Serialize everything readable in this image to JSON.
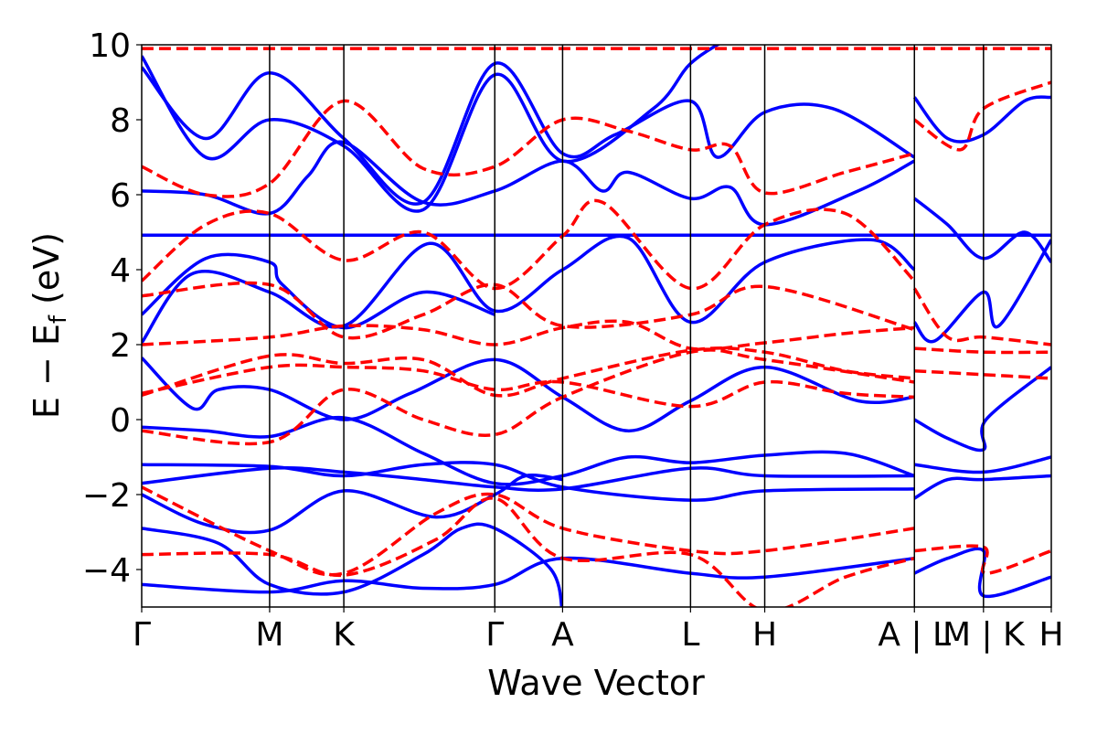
{
  "chart_data": {
    "type": "line",
    "title": "",
    "xlabel": "Wave Vector",
    "ylabel": "E − E",
    "ylabel_sub": "f",
    "ylabel_unit": " (eV)",
    "ylim": [
      -5,
      10
    ],
    "yticks": [
      -4,
      -2,
      0,
      2,
      4,
      6,
      8,
      10
    ],
    "ytick_labels": [
      "−4",
      "−2",
      "0",
      "2",
      "4",
      "6",
      "8",
      "10"
    ],
    "xlim": [
      0,
      7.11
    ],
    "xticks": [
      0,
      1,
      1.58,
      2.76,
      3.29,
      4.29,
      4.87,
      6.04,
      6.58,
      7.11
    ],
    "xtick_labels": [
      "Γ",
      "M",
      "K",
      "Γ",
      "A",
      "L",
      "H",
      "A | L",
      "M | K",
      "H"
    ],
    "grid": "vertical lines at high-symmetry points",
    "colors": {
      "solid": "#0000ff",
      "dashed": "#ff0000"
    },
    "series": [
      {
        "style": "solid",
        "points": [
          [
            0,
            4.92
          ],
          [
            7.11,
            4.92
          ]
        ]
      },
      {
        "style": "solid",
        "points": [
          [
            0,
            6.1
          ],
          [
            0.5,
            6.0
          ],
          [
            1,
            5.5
          ],
          [
            1.3,
            6.5
          ],
          [
            1.58,
            7.4
          ],
          [
            2.2,
            5.8
          ],
          [
            2.76,
            6.1
          ],
          [
            3.29,
            6.9
          ],
          [
            3.6,
            6.1
          ],
          [
            3.8,
            6.6
          ],
          [
            4.29,
            5.9
          ],
          [
            4.6,
            6.2
          ],
          [
            4.87,
            5.2
          ],
          [
            5.6,
            6.1
          ],
          [
            6.04,
            6.9
          ]
        ]
      },
      {
        "style": "solid",
        "points": [
          [
            6.04,
            5.9
          ],
          [
            6.3,
            5.2
          ],
          [
            6.58,
            4.3
          ],
          [
            6.9,
            5.0
          ],
          [
            7.11,
            4.2
          ]
        ]
      },
      {
        "style": "solid",
        "points": [
          [
            0,
            2.05
          ],
          [
            0.4,
            3.9
          ],
          [
            1,
            3.4
          ],
          [
            1.58,
            2.5
          ],
          [
            2.25,
            4.7
          ],
          [
            2.76,
            2.9
          ],
          [
            3.29,
            4.0
          ],
          [
            3.8,
            4.85
          ],
          [
            4.29,
            2.6
          ],
          [
            4.87,
            4.2
          ],
          [
            5.7,
            4.8
          ],
          [
            6.04,
            4.0
          ]
        ]
      },
      {
        "style": "solid",
        "points": [
          [
            6.04,
            2.6
          ],
          [
            6.2,
            2.1
          ],
          [
            6.58,
            3.4
          ],
          [
            6.7,
            2.5
          ],
          [
            7.11,
            4.8
          ]
        ]
      },
      {
        "style": "solid",
        "points": [
          [
            0,
            1.65
          ],
          [
            0.4,
            0.3
          ],
          [
            0.6,
            0.8
          ],
          [
            1,
            0.8
          ],
          [
            1.58,
            0.0
          ],
          [
            2.1,
            0.7
          ],
          [
            2.76,
            1.6
          ],
          [
            3.29,
            0.6
          ],
          [
            3.8,
            -0.3
          ],
          [
            4.29,
            0.5
          ],
          [
            4.87,
            1.4
          ],
          [
            5.6,
            0.5
          ],
          [
            6.04,
            0.6
          ]
        ]
      },
      {
        "style": "solid",
        "points": [
          [
            6.04,
            0.0
          ],
          [
            6.3,
            -0.5
          ],
          [
            6.58,
            -0.8
          ],
          [
            6.6,
            0.0
          ],
          [
            7.11,
            1.4
          ]
        ]
      },
      {
        "style": "solid",
        "points": [
          [
            0,
            -0.2
          ],
          [
            0.5,
            -0.3
          ],
          [
            1,
            -0.45
          ],
          [
            1.58,
            0.05
          ],
          [
            2.2,
            -0.9
          ],
          [
            2.76,
            -1.7
          ],
          [
            3.29,
            -1.5
          ],
          [
            3.8,
            -1.0
          ],
          [
            4.29,
            -1.15
          ],
          [
            4.87,
            -0.95
          ],
          [
            5.5,
            -0.9
          ],
          [
            6.04,
            -1.5
          ]
        ]
      },
      {
        "style": "solid",
        "points": [
          [
            0,
            -1.2
          ],
          [
            1,
            -1.25
          ],
          [
            1.58,
            -1.5
          ],
          [
            2.2,
            -1.2
          ],
          [
            2.76,
            -1.2
          ],
          [
            3.29,
            -1.8
          ],
          [
            4.29,
            -2.15
          ],
          [
            4.87,
            -1.9
          ],
          [
            6.04,
            -1.85
          ]
        ]
      },
      {
        "style": "solid",
        "points": [
          [
            0,
            -1.7
          ],
          [
            1,
            -1.3
          ],
          [
            1.58,
            -1.4
          ],
          [
            2.2,
            -1.6
          ],
          [
            2.76,
            -1.8
          ],
          [
            3.29,
            -1.85
          ],
          [
            4.29,
            -1.3
          ],
          [
            4.87,
            -1.5
          ],
          [
            6.04,
            -1.5
          ]
        ]
      },
      {
        "style": "solid",
        "points": [
          [
            0,
            -2.0
          ],
          [
            0.5,
            -2.8
          ],
          [
            1,
            -2.95
          ],
          [
            1.58,
            -1.9
          ],
          [
            2.3,
            -2.6
          ],
          [
            2.76,
            -2.0
          ],
          [
            3.0,
            -1.5
          ],
          [
            3.29,
            -1.6
          ]
        ]
      },
      {
        "style": "solid",
        "points": [
          [
            6.04,
            -1.2
          ],
          [
            6.58,
            -1.4
          ],
          [
            7.11,
            -1.0
          ]
        ]
      },
      {
        "style": "solid",
        "points": [
          [
            6.04,
            -2.1
          ],
          [
            6.3,
            -1.6
          ],
          [
            6.58,
            -1.6
          ],
          [
            7.11,
            -1.5
          ]
        ]
      },
      {
        "style": "solid",
        "points": [
          [
            0,
            -4.4
          ],
          [
            1,
            -4.6
          ],
          [
            1.58,
            -4.3
          ],
          [
            2.2,
            -4.5
          ],
          [
            2.76,
            -4.4
          ],
          [
            3.29,
            -3.7
          ],
          [
            4.29,
            -4.1
          ],
          [
            4.87,
            -4.2
          ],
          [
            6.04,
            -3.7
          ]
        ]
      },
      {
        "style": "solid",
        "points": [
          [
            0,
            -2.9
          ],
          [
            0.6,
            -3.3
          ],
          [
            1,
            -4.4
          ],
          [
            1.58,
            -4.6
          ],
          [
            2.2,
            -3.6
          ],
          [
            2.5,
            -2.9
          ],
          [
            2.76,
            -2.9
          ],
          [
            3.2,
            -4.0
          ],
          [
            3.29,
            -5.2
          ]
        ]
      },
      {
        "style": "solid",
        "points": [
          [
            6.04,
            -4.1
          ],
          [
            6.3,
            -3.7
          ],
          [
            6.58,
            -3.5
          ],
          [
            6.58,
            -4.7
          ],
          [
            7.11,
            -4.2
          ]
        ]
      },
      {
        "style": "solid",
        "points": [
          [
            0,
            9.4
          ],
          [
            0.5,
            7.5
          ],
          [
            1,
            9.25
          ],
          [
            1.58,
            7.5
          ],
          [
            2.2,
            5.8
          ],
          [
            2.76,
            9.5
          ],
          [
            3.29,
            7.1
          ],
          [
            3.7,
            7.6
          ],
          [
            4.29,
            8.5
          ],
          [
            4.5,
            7.0
          ],
          [
            4.87,
            8.2
          ],
          [
            5.4,
            8.3
          ],
          [
            6.04,
            7.0
          ]
        ]
      },
      {
        "style": "solid",
        "points": [
          [
            0,
            9.7
          ],
          [
            0.5,
            7.0
          ],
          [
            1,
            8.0
          ],
          [
            1.58,
            7.3
          ],
          [
            2.2,
            5.6
          ],
          [
            2.76,
            9.2
          ],
          [
            3.29,
            6.9
          ],
          [
            4.0,
            8.3
          ],
          [
            4.29,
            9.5
          ],
          [
            4.6,
            10.2
          ]
        ]
      },
      {
        "style": "solid",
        "points": [
          [
            0,
            2.8
          ],
          [
            0.5,
            4.3
          ],
          [
            1,
            4.2
          ],
          [
            1.1,
            3.6
          ],
          [
            1.58,
            2.45
          ],
          [
            2.2,
            3.4
          ],
          [
            2.76,
            2.8
          ]
        ]
      },
      {
        "style": "solid",
        "points": [
          [
            6.04,
            8.6
          ],
          [
            6.3,
            7.5
          ],
          [
            6.58,
            7.6
          ],
          [
            6.9,
            8.5
          ],
          [
            7.11,
            8.6
          ]
        ]
      },
      {
        "style": "dashed",
        "points": [
          [
            0,
            9.9
          ],
          [
            7.11,
            9.9
          ]
        ]
      },
      {
        "style": "dashed",
        "points": [
          [
            0,
            6.75
          ],
          [
            0.5,
            6.0
          ],
          [
            1,
            6.3
          ],
          [
            1.58,
            8.5
          ],
          [
            2.2,
            6.7
          ],
          [
            2.76,
            6.75
          ],
          [
            3.29,
            8.0
          ],
          [
            3.8,
            7.7
          ],
          [
            4.29,
            7.2
          ],
          [
            4.6,
            7.3
          ],
          [
            4.87,
            6.05
          ],
          [
            5.5,
            6.6
          ],
          [
            6.04,
            7.1
          ]
        ]
      },
      {
        "style": "dashed",
        "points": [
          [
            0,
            3.7
          ],
          [
            0.5,
            5.2
          ],
          [
            1,
            5.5
          ],
          [
            1.58,
            4.25
          ],
          [
            2.2,
            5.0
          ],
          [
            2.76,
            3.5
          ],
          [
            3.29,
            4.9
          ],
          [
            3.6,
            5.8
          ],
          [
            4.29,
            3.5
          ],
          [
            4.87,
            5.2
          ],
          [
            5.5,
            5.5
          ],
          [
            6.04,
            3.7
          ]
        ]
      },
      {
        "style": "dashed",
        "points": [
          [
            0,
            2.0
          ],
          [
            1,
            2.2
          ],
          [
            1.58,
            2.5
          ],
          [
            2.2,
            2.4
          ],
          [
            2.76,
            2.0
          ],
          [
            3.29,
            2.45
          ],
          [
            3.8,
            2.6
          ],
          [
            4.29,
            1.9
          ],
          [
            4.87,
            2.05
          ],
          [
            5.5,
            2.3
          ],
          [
            6.04,
            2.45
          ]
        ]
      },
      {
        "style": "dashed",
        "points": [
          [
            0,
            0.65
          ],
          [
            1,
            1.7
          ],
          [
            1.58,
            1.5
          ],
          [
            2.2,
            1.6
          ],
          [
            2.76,
            0.65
          ],
          [
            3.29,
            1.1
          ],
          [
            4.29,
            1.85
          ],
          [
            4.87,
            1.8
          ],
          [
            5.5,
            1.3
          ],
          [
            6.04,
            1.1
          ]
        ]
      },
      {
        "style": "dashed",
        "points": [
          [
            0,
            0.7
          ],
          [
            1,
            1.4
          ],
          [
            1.58,
            1.4
          ],
          [
            2.2,
            1.3
          ],
          [
            2.76,
            0.8
          ],
          [
            3.29,
            1.0
          ],
          [
            4.29,
            0.35
          ],
          [
            4.87,
            1.0
          ],
          [
            5.5,
            0.7
          ],
          [
            6.04,
            0.6
          ]
        ]
      },
      {
        "style": "dashed",
        "points": [
          [
            0,
            -0.3
          ],
          [
            1,
            -0.6
          ],
          [
            1.58,
            0.8
          ],
          [
            2.2,
            0.0
          ],
          [
            2.76,
            -0.4
          ],
          [
            3.29,
            0.6
          ],
          [
            4.29,
            1.8
          ],
          [
            4.87,
            1.6
          ],
          [
            6.04,
            1.0
          ]
        ]
      },
      {
        "style": "dashed",
        "points": [
          [
            0,
            3.3
          ],
          [
            1,
            3.6
          ],
          [
            1.58,
            2.2
          ],
          [
            2.2,
            2.8
          ],
          [
            2.76,
            3.6
          ],
          [
            3.29,
            2.5
          ],
          [
            4.29,
            2.8
          ],
          [
            4.87,
            3.55
          ],
          [
            6.04,
            2.4
          ]
        ]
      },
      {
        "style": "dashed",
        "points": [
          [
            0,
            -1.8
          ],
          [
            1,
            -3.5
          ],
          [
            1.58,
            -4.1
          ],
          [
            2.3,
            -2.5
          ],
          [
            2.76,
            -2.0
          ],
          [
            3.29,
            -2.9
          ],
          [
            4.29,
            -3.5
          ],
          [
            4.87,
            -3.5
          ],
          [
            6.04,
            -2.9
          ]
        ]
      },
      {
        "style": "dashed",
        "points": [
          [
            0,
            -3.6
          ],
          [
            1,
            -3.6
          ],
          [
            1.58,
            -4.15
          ],
          [
            2.3,
            -3.2
          ],
          [
            2.76,
            -2.1
          ],
          [
            3.29,
            -3.7
          ],
          [
            4.29,
            -3.6
          ],
          [
            4.87,
            -5.1
          ],
          [
            5.5,
            -4.2
          ],
          [
            6.04,
            -3.7
          ]
        ]
      },
      {
        "style": "dashed",
        "points": [
          [
            6.04,
            3.5
          ],
          [
            6.3,
            2.2
          ],
          [
            6.58,
            2.2
          ],
          [
            7.11,
            2.0
          ]
        ]
      },
      {
        "style": "dashed",
        "points": [
          [
            6.04,
            1.9
          ],
          [
            6.58,
            1.8
          ],
          [
            7.11,
            1.8
          ]
        ]
      },
      {
        "style": "dashed",
        "points": [
          [
            6.04,
            1.3
          ],
          [
            6.58,
            1.2
          ],
          [
            7.11,
            1.1
          ]
        ]
      },
      {
        "style": "dashed",
        "points": [
          [
            6.04,
            -3.5
          ],
          [
            6.58,
            -3.4
          ],
          [
            6.6,
            -4.1
          ],
          [
            7.11,
            -3.5
          ]
        ]
      },
      {
        "style": "dashed",
        "points": [
          [
            6.04,
            8.0
          ],
          [
            6.4,
            7.2
          ],
          [
            6.58,
            8.3
          ],
          [
            7.11,
            9.0
          ]
        ]
      }
    ]
  }
}
